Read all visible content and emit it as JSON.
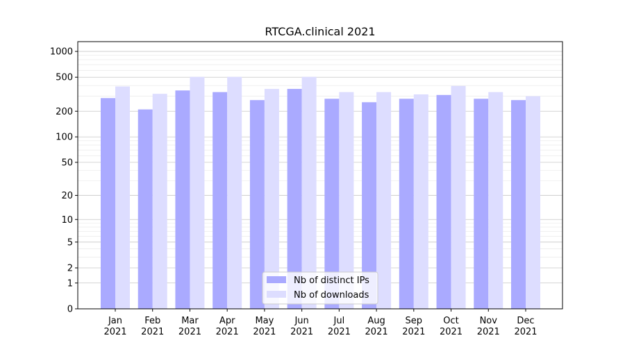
{
  "chart_data": {
    "type": "bar",
    "title": "RTCGA.clinical 2021",
    "xlabel": "",
    "ylabel": "",
    "scale": "symlog",
    "categories": [
      [
        "Jan",
        "2021"
      ],
      [
        "Feb",
        "2021"
      ],
      [
        "Mar",
        "2021"
      ],
      [
        "Apr",
        "2021"
      ],
      [
        "May",
        "2021"
      ],
      [
        "Jun",
        "2021"
      ],
      [
        "Jul",
        "2021"
      ],
      [
        "Aug",
        "2021"
      ],
      [
        "Sep",
        "2021"
      ],
      [
        "Oct",
        "2021"
      ],
      [
        "Nov",
        "2021"
      ],
      [
        "Dec",
        "2021"
      ]
    ],
    "series": [
      {
        "name": "Nb of distinct IPs",
        "color": "#aaaaff",
        "values": [
          285,
          210,
          350,
          335,
          270,
          365,
          280,
          255,
          280,
          310,
          280,
          270
        ]
      },
      {
        "name": "Nb of downloads",
        "color": "#ddddff",
        "values": [
          390,
          320,
          505,
          505,
          365,
          505,
          335,
          335,
          315,
          395,
          335,
          300
        ]
      }
    ],
    "yticks": [
      {
        "value": 0,
        "label": "0"
      },
      {
        "value": 1,
        "label": "1"
      },
      {
        "value": 2,
        "label": "2"
      },
      {
        "value": 5,
        "label": "5"
      },
      {
        "value": 10,
        "label": "10"
      },
      {
        "value": 20,
        "label": "20"
      },
      {
        "value": 50,
        "label": "50"
      },
      {
        "value": 100,
        "label": "100"
      },
      {
        "value": 200,
        "label": "200"
      },
      {
        "value": 500,
        "label": "500"
      },
      {
        "value": 1000,
        "label": "1000"
      }
    ],
    "ylim": [
      0,
      1300
    ],
    "grid": true,
    "legend": "lower-center"
  }
}
